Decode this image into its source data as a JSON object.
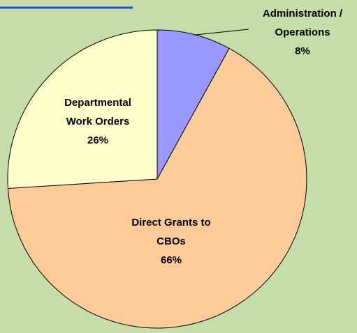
{
  "chart_data": {
    "type": "pie",
    "categories": [
      [
        "Administration /",
        "Operations"
      ],
      [
        "Direct Grants to",
        "CBOs"
      ],
      [
        "Departmental",
        "Work Orders"
      ]
    ],
    "values": [
      8,
      66,
      26
    ],
    "value_labels": [
      "8%",
      "66%",
      "26%"
    ],
    "colors": [
      "#9999ff",
      "#ffcc99",
      "#ffffcc"
    ]
  }
}
